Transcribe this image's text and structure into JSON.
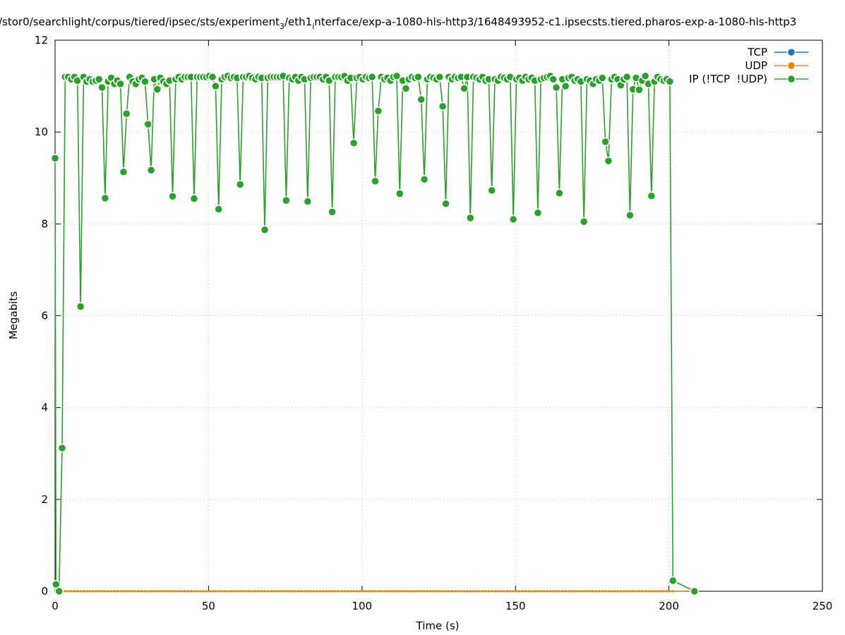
{
  "chart_data": {
    "type": "line",
    "title": [
      "/stor0/searchlight/corpus/tiered/ipsec/sts/experiment",
      "3",
      "/eth1",
      "i",
      "nterface/exp-a-1080-hls-http3/1648493952-c1.ipsecsts.tiered.pharos-exp-a-1080-hls-http3"
    ],
    "x_label": "Time (s)",
    "y_label": "Megabits",
    "xlim": [
      0,
      250
    ],
    "xticks": [
      0,
      50,
      100,
      150,
      200,
      250
    ],
    "ylim": [
      0,
      12
    ],
    "yticks": [
      0,
      2,
      4,
      6,
      8,
      10,
      12
    ],
    "grid": true,
    "legend": "top-right",
    "x": [
      0,
      0.3,
      1.3,
      2.3,
      3.3,
      4.3,
      5.3,
      6.3,
      7.3,
      8.3,
      9.3,
      10.3,
      11.3,
      12.3,
      13.3,
      14.3,
      15.3,
      16.3,
      17.3,
      18.3,
      19.3,
      20.3,
      21.3,
      22.3,
      23.3,
      24.3,
      25.3,
      26.3,
      27.3,
      28.3,
      29.3,
      30.3,
      31.3,
      32.3,
      33.3,
      34.3,
      35.3,
      36.3,
      37.3,
      38.3,
      39.3,
      40.3,
      41.3,
      42.3,
      43.3,
      44.3,
      45.3,
      46.3,
      47.3,
      48.3,
      49.3,
      50.3,
      51.3,
      52.3,
      53.3,
      54.3,
      55.3,
      56.3,
      57.3,
      58.3,
      59.3,
      60.3,
      61.3,
      62.3,
      63.3,
      64.3,
      65.3,
      66.3,
      67.3,
      68.3,
      69.3,
      70.3,
      71.3,
      72.3,
      73.3,
      74.3,
      75.3,
      76.3,
      77.3,
      78.3,
      79.3,
      80.3,
      81.3,
      82.3,
      83.3,
      84.3,
      85.3,
      86.3,
      87.3,
      88.3,
      89.3,
      90.3,
      91.3,
      92.3,
      93.3,
      94.3,
      95.3,
      96.3,
      97.3,
      98.3,
      99.3,
      100.3,
      101.3,
      102.3,
      103.3,
      104.3,
      105.3,
      106.3,
      107.3,
      108.3,
      109.3,
      110.3,
      111.3,
      112.3,
      113.3,
      114.3,
      115.3,
      116.3,
      117.3,
      118.3,
      119.3,
      120.3,
      121.3,
      122.3,
      123.3,
      124.3,
      125.3,
      126.3,
      127.3,
      128.3,
      129.3,
      130.3,
      131.3,
      132.3,
      133.3,
      134.3,
      135.3,
      136.3,
      137.3,
      138.3,
      139.3,
      140.3,
      141.3,
      142.3,
      143.3,
      144.3,
      145.3,
      146.3,
      147.3,
      148.3,
      149.3,
      150.3,
      151.3,
      152.3,
      153.3,
      154.3,
      155.3,
      156.3,
      157.3,
      158.3,
      159.3,
      160.3,
      161.3,
      162.3,
      163.3,
      164.3,
      165.3,
      166.3,
      167.3,
      168.3,
      169.3,
      170.3,
      171.3,
      172.3,
      173.3,
      174.3,
      175.3,
      176.3,
      177.3,
      178.3,
      179.3,
      180.3,
      181.3,
      182.3,
      183.3,
      184.3,
      185.3,
      186.3,
      187.3,
      188.3,
      189.3,
      190.3,
      191.3,
      192.3,
      193.3,
      194.3,
      195.3,
      196.3,
      197.3,
      198.3,
      199.3,
      200.3,
      201.3,
      208.3
    ],
    "series": [
      {
        "name": "TCP",
        "color": "#1f77b4",
        "values": [
          0,
          0,
          0,
          0,
          0,
          0,
          0,
          0,
          0,
          0,
          0,
          0,
          0,
          0,
          0,
          0,
          0,
          0,
          0,
          0,
          0,
          0,
          0,
          0,
          0,
          0,
          0,
          0,
          0,
          0,
          0,
          0,
          0,
          0,
          0,
          0,
          0,
          0,
          0,
          0,
          0,
          0,
          0,
          0,
          0,
          0,
          0,
          0,
          0,
          0,
          0,
          0,
          0,
          0,
          0,
          0,
          0,
          0,
          0,
          0,
          0,
          0,
          0,
          0,
          0,
          0,
          0,
          0,
          0,
          0,
          0,
          0,
          0,
          0,
          0,
          0,
          0,
          0,
          0,
          0,
          0,
          0,
          0,
          0,
          0,
          0,
          0,
          0,
          0,
          0,
          0,
          0,
          0,
          0,
          0,
          0,
          0,
          0,
          0,
          0,
          0,
          0,
          0,
          0,
          0,
          0,
          0,
          0,
          0,
          0,
          0,
          0,
          0,
          0,
          0,
          0,
          0,
          0,
          0,
          0,
          0,
          0,
          0,
          0,
          0,
          0,
          0,
          0,
          0,
          0,
          0,
          0,
          0,
          0,
          0,
          0,
          0,
          0,
          0,
          0,
          0,
          0,
          0,
          0,
          0,
          0,
          0,
          0,
          0,
          0,
          0,
          0,
          0,
          0,
          0,
          0,
          0,
          0,
          0,
          0,
          0,
          0,
          0,
          0,
          0,
          0,
          0,
          0,
          0,
          0,
          0,
          0,
          0,
          0,
          0,
          0,
          0,
          0,
          0,
          0,
          0,
          0,
          0,
          0,
          0,
          0,
          0,
          0,
          0,
          0,
          0,
          0,
          0,
          0,
          0,
          0,
          0,
          0,
          0,
          0,
          0,
          0,
          0,
          0
        ]
      },
      {
        "name": "UDP",
        "color": "#ff7f0e",
        "values": [
          0,
          0,
          0,
          0,
          0,
          0,
          0,
          0,
          0,
          0,
          0,
          0,
          0,
          0,
          0,
          0,
          0,
          0,
          0,
          0,
          0,
          0,
          0,
          0,
          0,
          0,
          0,
          0,
          0,
          0,
          0,
          0,
          0,
          0,
          0,
          0,
          0,
          0,
          0,
          0,
          0,
          0,
          0,
          0,
          0,
          0,
          0,
          0,
          0,
          0,
          0,
          0,
          0,
          0,
          0,
          0,
          0,
          0,
          0,
          0,
          0,
          0,
          0,
          0,
          0,
          0,
          0,
          0,
          0,
          0,
          0,
          0,
          0,
          0,
          0,
          0,
          0,
          0,
          0,
          0,
          0,
          0,
          0,
          0,
          0,
          0,
          0,
          0,
          0,
          0,
          0,
          0,
          0,
          0,
          0,
          0,
          0,
          0,
          0,
          0,
          0,
          0,
          0,
          0,
          0,
          0,
          0,
          0,
          0,
          0,
          0,
          0,
          0,
          0,
          0,
          0,
          0,
          0,
          0,
          0,
          0,
          0,
          0,
          0,
          0,
          0,
          0,
          0,
          0,
          0,
          0,
          0,
          0,
          0,
          0,
          0,
          0,
          0,
          0,
          0,
          0,
          0,
          0,
          0,
          0,
          0,
          0,
          0,
          0,
          0,
          0,
          0,
          0,
          0,
          0,
          0,
          0,
          0,
          0,
          0,
          0,
          0,
          0,
          0,
          0,
          0,
          0,
          0,
          0,
          0,
          0,
          0,
          0,
          0,
          0,
          0,
          0,
          0,
          0,
          0,
          0,
          0,
          0,
          0,
          0,
          0,
          0,
          0,
          0,
          0,
          0,
          0,
          0,
          0,
          0,
          0,
          0,
          0,
          0,
          0,
          0,
          0,
          0,
          0
        ]
      },
      {
        "name": "IP (!TCP  !UDP)",
        "color": "#2ca02c",
        "values": [
          9.43,
          0.15,
          0,
          3.12,
          11.2,
          11.2,
          11.15,
          11.2,
          11.12,
          6.2,
          11.2,
          11.1,
          11.15,
          11.1,
          11.12,
          11.15,
          10.97,
          8.56,
          11.1,
          11.18,
          11.05,
          11.12,
          11.05,
          9.13,
          10.4,
          11.2,
          11.1,
          11.05,
          11.15,
          11.18,
          11.1,
          10.17,
          9.17,
          11.15,
          10.93,
          11.18,
          11.1,
          11.05,
          11.12,
          8.6,
          11.15,
          11.2,
          11.15,
          11.2,
          11.2,
          11.2,
          8.55,
          11.2,
          11.2,
          11.2,
          11.2,
          11.22,
          11.2,
          11.0,
          8.32,
          11.15,
          11.2,
          11.22,
          11.18,
          11.2,
          11.18,
          8.86,
          11.2,
          11.2,
          11.22,
          11.18,
          11.15,
          11.2,
          11.18,
          7.87,
          11.18,
          11.2,
          11.2,
          11.2,
          11.2,
          11.22,
          8.51,
          11.18,
          11.15,
          11.2,
          11.12,
          11.2,
          11.15,
          8.49,
          11.18,
          11.2,
          11.2,
          11.2,
          11.15,
          11.2,
          11.12,
          8.26,
          11.2,
          11.2,
          11.2,
          11.22,
          11.12,
          11.18,
          9.76,
          11.18,
          11.2,
          11.15,
          11.2,
          11.18,
          11.2,
          8.93,
          10.46,
          11.2,
          11.15,
          11.18,
          11.12,
          11.2,
          11.22,
          8.66,
          11.12,
          10.95,
          11.15,
          11.2,
          11.18,
          11.2,
          10.71,
          8.97,
          11.15,
          11.2,
          11.18,
          11.15,
          11.2,
          10.56,
          8.44,
          11.2,
          11.15,
          11.2,
          11.18,
          11.2,
          10.95,
          11.2,
          8.13,
          11.2,
          11.18,
          11.15,
          11.2,
          11.12,
          11.15,
          8.73,
          11.15,
          11.12,
          11.2,
          11.18,
          11.15,
          11.2,
          8.1,
          11.15,
          11.18,
          11.12,
          11.2,
          11.15,
          11.18,
          11.12,
          8.24,
          11.15,
          11.18,
          11.2,
          11.22,
          11.15,
          10.97,
          8.67,
          11.15,
          11.0,
          11.18,
          11.2,
          11.12,
          11.15,
          11.1,
          8.05,
          11.15,
          11.12,
          11.05,
          11.15,
          11.12,
          11.18,
          9.79,
          9.37,
          11.15,
          11.2,
          11.15,
          11.02,
          11.15,
          11.2,
          8.19,
          10.93,
          11.18,
          10.92,
          11.12,
          11.22,
          11.05,
          8.61,
          11.1,
          11.2,
          11.15,
          11.12,
          11.15,
          11.1,
          0.23,
          0
        ]
      }
    ]
  }
}
